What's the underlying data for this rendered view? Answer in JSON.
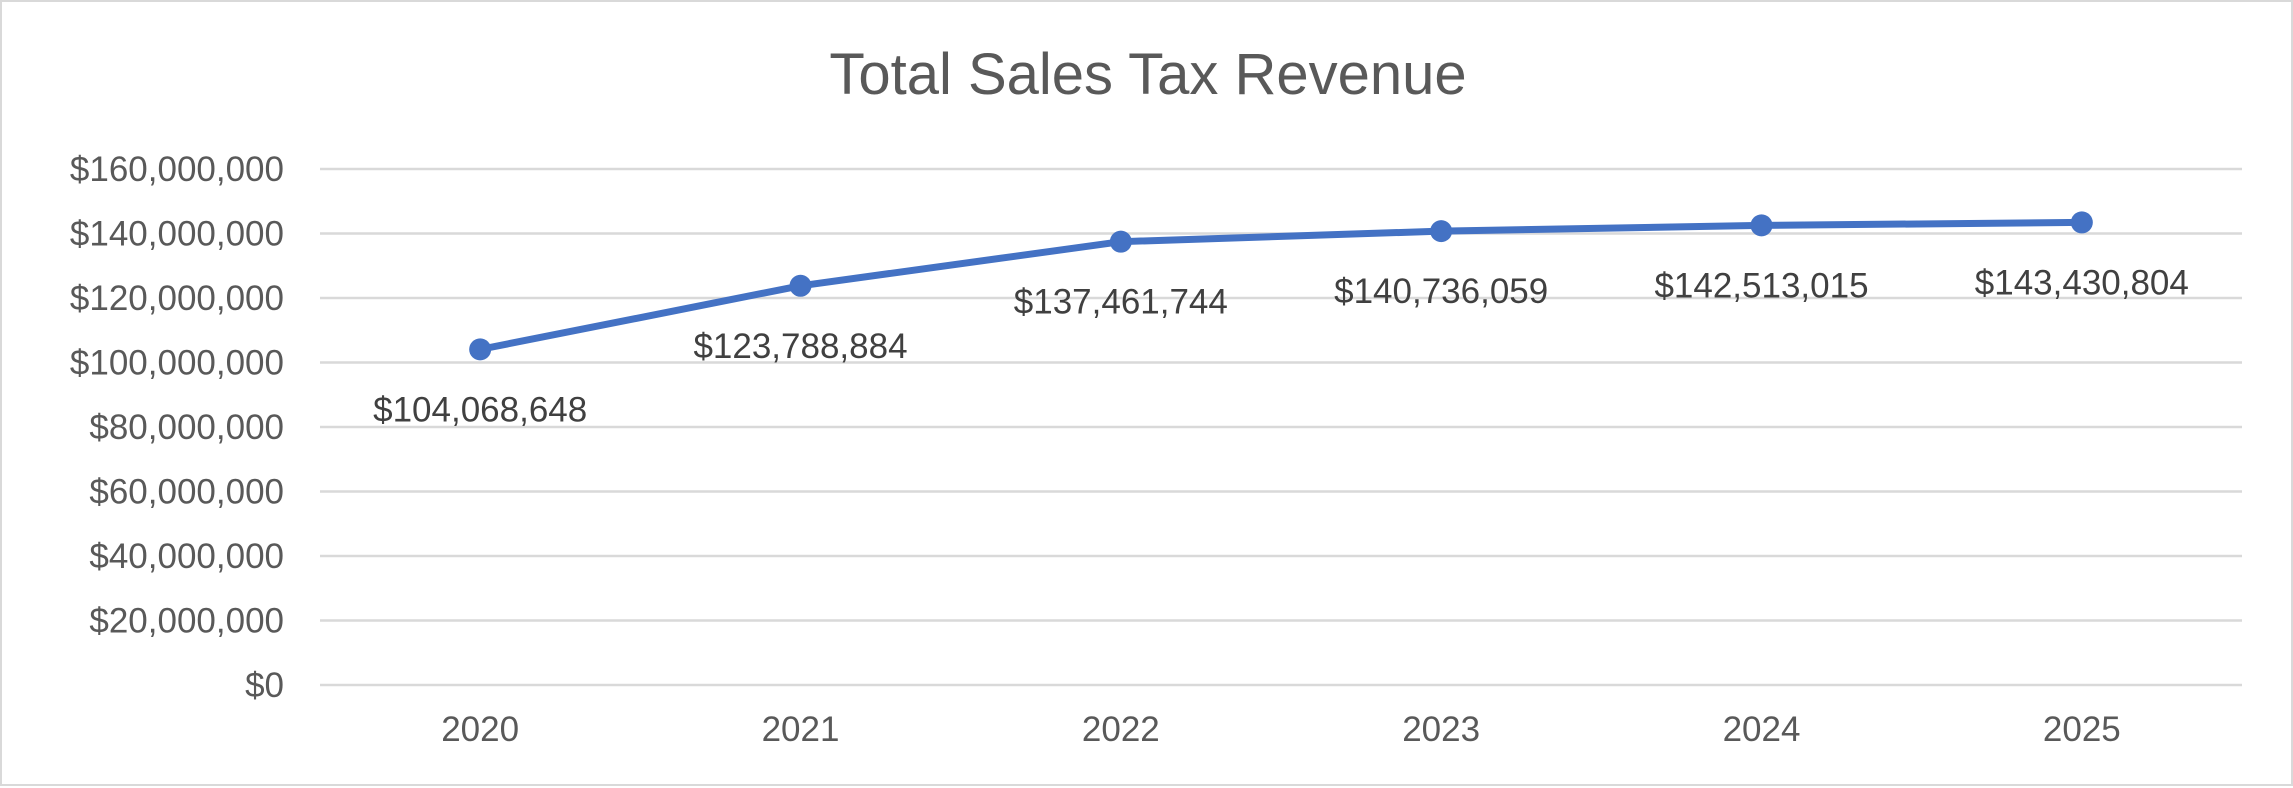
{
  "chart_data": {
    "type": "line",
    "title": "Total Sales Tax Revenue",
    "xlabel": "",
    "ylabel": "",
    "categories": [
      "2020",
      "2021",
      "2022",
      "2023",
      "2024",
      "2025"
    ],
    "values": [
      104068648,
      123788884,
      137461744,
      140736059,
      142513015,
      143430804
    ],
    "data_labels": [
      "$104,068,648",
      "$123,788,884",
      "$137,461,744",
      "$140,736,059",
      "$142,513,015",
      "$143,430,804"
    ],
    "ylim": [
      0,
      160000000
    ],
    "yticks": [
      0,
      20000000,
      40000000,
      60000000,
      80000000,
      100000000,
      120000000,
      140000000,
      160000000
    ],
    "ytick_labels": [
      "$0",
      "$20,000,000",
      "$40,000,000",
      "$60,000,000",
      "$80,000,000",
      "$100,000,000",
      "$120,000,000",
      "$140,000,000",
      "$160,000,000"
    ],
    "grid": true,
    "legend": "none",
    "markers": true,
    "colors": {
      "series": "#4472C4",
      "grid": "#d9d9d9",
      "text": "#595959",
      "label": "#404040"
    }
  }
}
